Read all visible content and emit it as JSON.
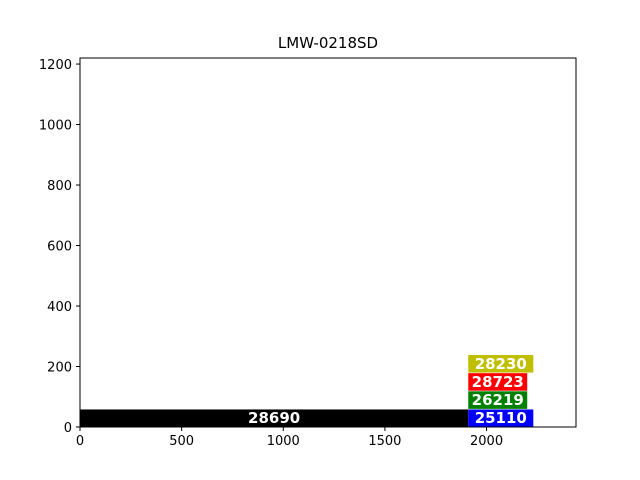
{
  "chart_data": {
    "type": "bar",
    "orientation": "horizontal",
    "title": "LMW-0218SD",
    "xlabel": "",
    "ylabel": "",
    "xlim": [
      0,
      2440
    ],
    "ylim": [
      0,
      1220
    ],
    "x_ticks": [
      0,
      500,
      1000,
      1500,
      2000
    ],
    "y_ticks": [
      0,
      200,
      400,
      600,
      800,
      1000,
      1200
    ],
    "grid": false,
    "bars": [
      {
        "label": "28690",
        "x_start": 0,
        "x_end": 1910,
        "y_start": 0,
        "y_end": 58,
        "color": "#000000"
      },
      {
        "label": "25110",
        "x_start": 1910,
        "x_end": 2230,
        "y_start": 0,
        "y_end": 58,
        "color": "#0000ff"
      },
      {
        "label": "26219",
        "x_start": 1910,
        "x_end": 2200,
        "y_start": 60,
        "y_end": 118,
        "color": "#008000"
      },
      {
        "label": "28723",
        "x_start": 1910,
        "x_end": 2200,
        "y_start": 120,
        "y_end": 178,
        "color": "#ff0000"
      },
      {
        "label": "28230",
        "x_start": 1910,
        "x_end": 2230,
        "y_start": 180,
        "y_end": 238,
        "color": "#bfbf00"
      }
    ]
  }
}
